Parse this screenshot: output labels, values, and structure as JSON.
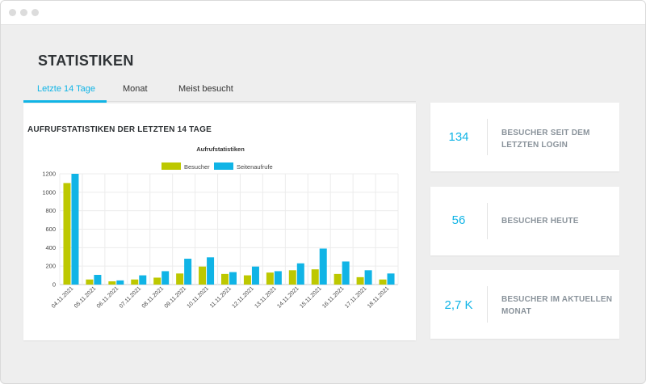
{
  "page": {
    "title": "STATISTIKEN"
  },
  "tabs": [
    {
      "label": "Letzte 14 Tage",
      "active": true
    },
    {
      "label": "Monat",
      "active": false
    },
    {
      "label": "Meist besucht",
      "active": false
    }
  ],
  "chart_card": {
    "title": "AUFRUFSTATISTIKEN DER LETZTEN 14 TAGE"
  },
  "chart_data": {
    "type": "bar",
    "title": "Aufrufstatistiken",
    "legend_position": "top",
    "grid": true,
    "categories": [
      "04.11.2021",
      "05.11.2021",
      "06.11.2021",
      "07.11.2021",
      "08.11.2021",
      "09.11.2021",
      "10.11.2021",
      "11.11.2021",
      "12.11.2021",
      "13.11.2021",
      "14.11.2021",
      "15.11.2021",
      "16.11.2021",
      "17.11.2021",
      "18.11.2021"
    ],
    "series": [
      {
        "name": "Besucher",
        "color": "#bdc800",
        "values": [
          1100,
          55,
          35,
          55,
          75,
          120,
          195,
          115,
          100,
          130,
          155,
          165,
          115,
          80,
          55
        ]
      },
      {
        "name": "Seitenaufrufe",
        "color": "#10b4e6",
        "values": [
          1200,
          105,
          45,
          100,
          145,
          280,
          295,
          135,
          195,
          145,
          230,
          390,
          250,
          155,
          120
        ]
      }
    ],
    "ylim": [
      0,
      1200
    ],
    "yticks": [
      0,
      200,
      400,
      600,
      800,
      1000,
      1200
    ]
  },
  "stats": [
    {
      "value": "134",
      "label_lines": [
        "BESUCHER SEIT DEM",
        "LETZTEN LOGIN"
      ]
    },
    {
      "value": "56",
      "label_lines": [
        "BESUCHER HEUTE"
      ]
    },
    {
      "value": "2,7 K",
      "label_lines": [
        "BESUCHER IM AKTUELLEN",
        "MONAT"
      ]
    }
  ],
  "colors": {
    "accent": "#10b4e6",
    "besucher": "#bdc800",
    "background": "#eeeeee"
  }
}
